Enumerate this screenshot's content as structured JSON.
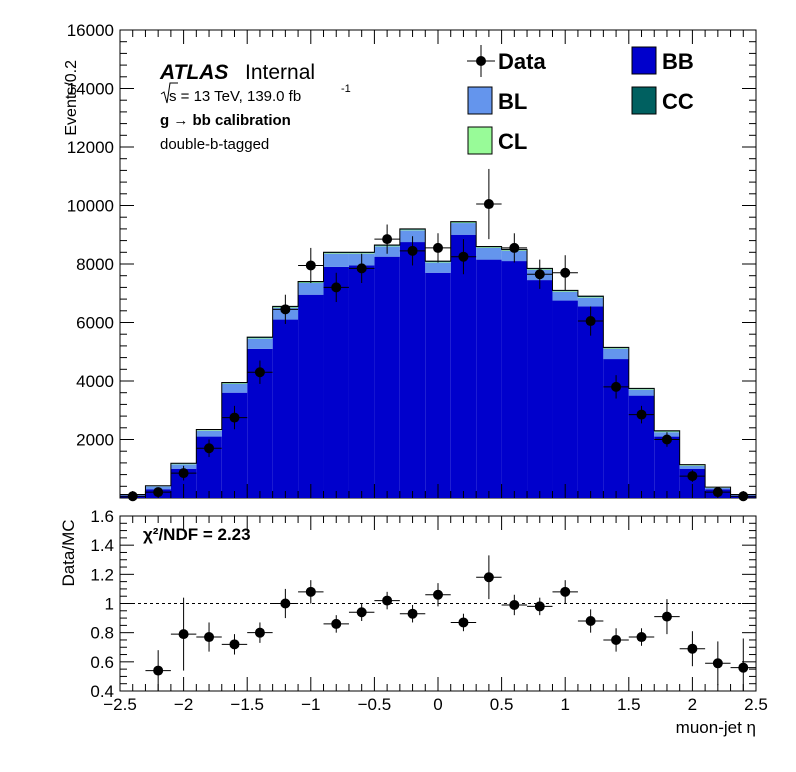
{
  "chart_data": [
    {
      "type": "bar",
      "panel": "main",
      "x_bin_edges": [
        -2.5,
        -2.3,
        -2.1,
        -1.9,
        -1.7,
        -1.5,
        -1.3,
        -1.1,
        -0.9,
        -0.7,
        -0.5,
        -0.3,
        -0.1,
        0.1,
        0.3,
        0.5,
        0.7,
        0.9,
        1.1,
        1.3,
        1.5,
        1.7,
        1.9,
        2.1,
        2.3,
        2.5
      ],
      "stacked": true,
      "series": [
        {
          "name": "BB",
          "color": "#0000cc",
          "values": [
            80,
            300,
            1000,
            2100,
            3600,
            5100,
            6100,
            6950,
            7900,
            7950,
            8250,
            8750,
            7700,
            9000,
            8150,
            8100,
            7450,
            6750,
            6550,
            4750,
            3500,
            2100,
            1000,
            300,
            80
          ]
        },
        {
          "name": "BL",
          "color": "#6495ed",
          "values": [
            30,
            100,
            150,
            200,
            300,
            350,
            400,
            400,
            450,
            400,
            350,
            400,
            350,
            400,
            400,
            350,
            350,
            300,
            300,
            350,
            200,
            150,
            100,
            50,
            30
          ]
        },
        {
          "name": "CL",
          "color": "#98fb98",
          "values": [
            5,
            10,
            20,
            20,
            20,
            20,
            20,
            20,
            20,
            20,
            20,
            20,
            20,
            20,
            20,
            20,
            20,
            20,
            20,
            20,
            20,
            20,
            20,
            10,
            5
          ]
        },
        {
          "name": "CC",
          "color": "#006060",
          "values": [
            5,
            10,
            20,
            20,
            30,
            30,
            30,
            30,
            30,
            30,
            30,
            30,
            30,
            30,
            30,
            30,
            30,
            30,
            30,
            30,
            30,
            30,
            20,
            10,
            5
          ]
        }
      ],
      "data_points": {
        "name": "Data",
        "x": [
          -2.4,
          -2.2,
          -2.0,
          -1.8,
          -1.6,
          -1.4,
          -1.2,
          -1.0,
          -0.8,
          -0.6,
          -0.4,
          -0.2,
          0.0,
          0.2,
          0.4,
          0.6,
          0.8,
          1.0,
          1.2,
          1.4,
          1.6,
          1.8,
          2.0,
          2.2,
          2.4
        ],
        "y": [
          60,
          200,
          850,
          1700,
          2750,
          4300,
          6450,
          7950,
          7200,
          7850,
          8850,
          8450,
          8550,
          8250,
          10050,
          8550,
          7650,
          7700,
          6050,
          3800,
          2850,
          2000,
          750,
          200,
          60
        ],
        "yerr": [
          60,
          150,
          250,
          300,
          400,
          400,
          500,
          600,
          500,
          500,
          500,
          500,
          500,
          600,
          1200,
          500,
          500,
          600,
          500,
          400,
          300,
          250,
          200,
          150,
          60
        ]
      },
      "ylabel": "Events/0.2",
      "ylim": [
        0,
        16000
      ],
      "yticks": [
        "2000",
        "4000",
        "6000",
        "8000",
        "10000",
        "12000",
        "14000",
        "16000"
      ],
      "xlim": [
        -2.5,
        2.5
      ]
    },
    {
      "type": "scatter",
      "panel": "ratio",
      "x": [
        -2.2,
        -2.0,
        -1.8,
        -1.6,
        -1.4,
        -1.2,
        -1.0,
        -0.8,
        -0.6,
        -0.4,
        -0.2,
        0.0,
        0.2,
        0.4,
        0.6,
        0.8,
        1.0,
        1.2,
        1.4,
        1.6,
        1.8,
        2.0,
        2.2,
        2.4
      ],
      "y": [
        0.54,
        0.79,
        0.77,
        0.72,
        0.8,
        1.0,
        1.08,
        0.86,
        0.94,
        1.02,
        0.93,
        1.06,
        0.87,
        1.18,
        0.99,
        0.98,
        1.08,
        0.88,
        0.75,
        0.77,
        0.91,
        0.69,
        0.59,
        0.56
      ],
      "yerr": [
        0.14,
        0.25,
        0.1,
        0.07,
        0.07,
        0.1,
        0.08,
        0.06,
        0.06,
        0.06,
        0.06,
        0.08,
        0.06,
        0.15,
        0.07,
        0.06,
        0.08,
        0.08,
        0.08,
        0.06,
        0.12,
        0.12,
        0.15,
        0.2
      ],
      "xerr": 0.1,
      "reference_line": 1.0,
      "ylabel": "Data/MC",
      "xlabel": "muon-jet η",
      "ylim": [
        0.4,
        1.6
      ],
      "yticks": [
        "0.4",
        "0.6",
        "0.8",
        "1",
        "1.2",
        "1.4",
        "1.6"
      ],
      "xlim": [
        -2.5,
        2.5
      ],
      "xticks": [
        "−2.5",
        "−2",
        "−1.5",
        "−1",
        "−0.5",
        "0",
        "0.5",
        "1",
        "1.5",
        "2",
        "2.5"
      ]
    }
  ],
  "annotations": {
    "atlas": "ATLAS",
    "internal": "Internal",
    "sqrt_s": "s = 13 TeV, 139.0 fb",
    "lumi_exp": "-1",
    "process": "g  → bb calibration",
    "tagging": "double-b-tagged",
    "chi2_label": "χ²/NDF = 2.23"
  },
  "legend": {
    "placement": "top-right",
    "entries": [
      {
        "label": "Data",
        "kind": "marker"
      },
      {
        "label": "BB",
        "kind": "box",
        "color": "#0000cc"
      },
      {
        "label": "BL",
        "kind": "box",
        "color": "#6495ed"
      },
      {
        "label": "CC",
        "kind": "box",
        "color": "#006060"
      },
      {
        "label": "CL",
        "kind": "box",
        "color": "#98fb98"
      }
    ]
  }
}
